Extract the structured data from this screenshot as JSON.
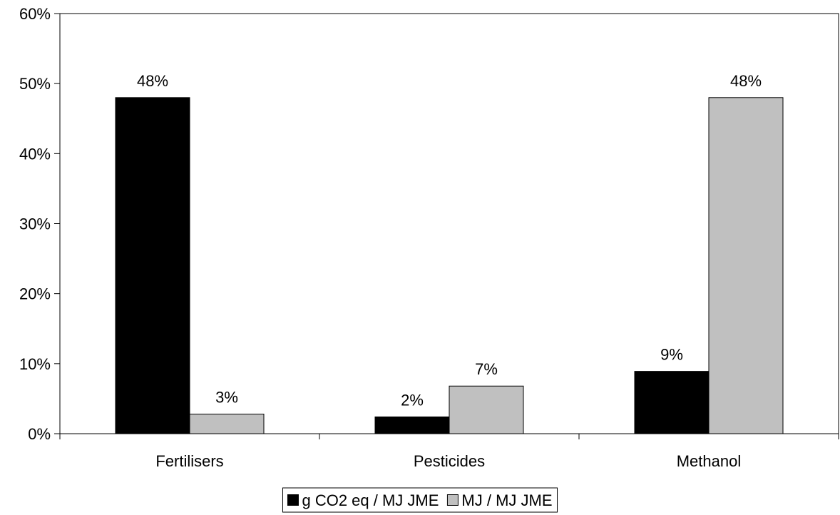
{
  "chart_data": {
    "type": "bar",
    "categories": [
      "Fertilisers",
      "Pesticides",
      "Methanol"
    ],
    "series": [
      {
        "name": "g CO2 eq / MJ JME",
        "values": [
          48,
          2.4,
          8.9
        ],
        "labels": [
          "48%",
          "2%",
          "9%"
        ],
        "color": "#000000"
      },
      {
        "name": "MJ / MJ JME",
        "values": [
          2.8,
          6.8,
          48
        ],
        "labels": [
          "3%",
          "7%",
          "48%"
        ],
        "color": "#c0c0c0"
      }
    ],
    "ylim": [
      0,
      60
    ],
    "yticks": [
      0,
      10,
      20,
      30,
      40,
      50,
      60
    ],
    "ytick_labels": [
      "0%",
      "10%",
      "20%",
      "30%",
      "40%",
      "50%",
      "60%"
    ],
    "title": "",
    "xlabel": "",
    "ylabel": "",
    "grid": false,
    "legend": "bottom"
  }
}
